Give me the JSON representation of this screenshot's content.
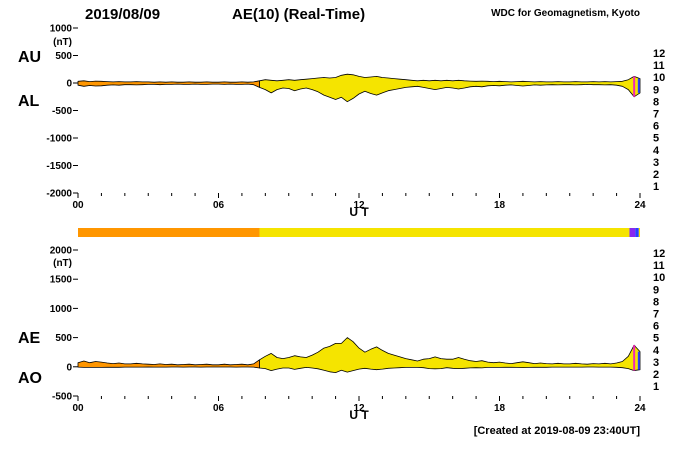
{
  "header": {
    "date": "2019/08/09",
    "title": "AE(10) (Real-Time)",
    "source": "WDC for Geomagnetism, Kyoto"
  },
  "footer": {
    "created": "[Created at 2019-08-09 23:40UT]"
  },
  "legend": {
    "station_counts": [
      "12",
      "11",
      "10",
      "9",
      "8",
      "7",
      "6",
      "5",
      "4",
      "3",
      "2",
      "1"
    ],
    "colors": [
      "#e60000",
      "#f000c8",
      "#ff9600",
      "#f0dc00",
      "#00c8c8",
      "#3264c8",
      "#00c8f0",
      "#c800f0",
      "#2832e6",
      "#000000",
      "#787878",
      "#bebebe"
    ]
  },
  "station_bar": {
    "segments": [
      {
        "start": 0,
        "end": 7.75,
        "color": "#ff9600"
      },
      {
        "start": 7.75,
        "end": 23.55,
        "color": "#f5e400"
      },
      {
        "start": 23.55,
        "end": 23.8,
        "color": "#8828f0"
      },
      {
        "start": 23.8,
        "end": 23.95,
        "color": "#2840ff"
      },
      {
        "start": 23.95,
        "end": 24,
        "color": "#f5e400"
      }
    ]
  },
  "chart_data": [
    {
      "type": "area",
      "name": "AU / AL auroral electrojet indices",
      "left_labels": [
        "AU",
        "AL"
      ],
      "ylabel_unit": "(nT)",
      "ylim": [
        -2000,
        1000
      ],
      "yticks": [
        1000,
        500,
        0,
        -500,
        -1000,
        -1500,
        -2000
      ],
      "xticks": [
        "00",
        "06",
        "12",
        "18",
        "24"
      ],
      "xlabel": "U T",
      "x_hours_step": 0.25,
      "fill_segments": [
        {
          "start": 0,
          "end": 7.75,
          "color": "#ff9600"
        },
        {
          "start": 7.75,
          "end": 24,
          "color": "#f5e400"
        }
      ],
      "end_markers": [
        {
          "t": 23.75,
          "color": "#f028b4"
        },
        {
          "t": 23.95,
          "color": "#2840ff"
        }
      ],
      "series": [
        {
          "name": "AU",
          "values": [
            30,
            40,
            25,
            35,
            30,
            25,
            20,
            25,
            20,
            20,
            25,
            20,
            20,
            15,
            20,
            15,
            20,
            15,
            15,
            20,
            15,
            15,
            20,
            15,
            15,
            20,
            15,
            15,
            20,
            15,
            20,
            40,
            60,
            50,
            40,
            50,
            60,
            50,
            60,
            70,
            80,
            90,
            100,
            90,
            100,
            140,
            160,
            150,
            120,
            100,
            110,
            120,
            100,
            90,
            80,
            70,
            60,
            50,
            40,
            50,
            40,
            50,
            40,
            50,
            40,
            50,
            40,
            35,
            30,
            35,
            30,
            25,
            30,
            25,
            20,
            25,
            30,
            25,
            20,
            25,
            20,
            20,
            25,
            20,
            20,
            25,
            20,
            20,
            25,
            20,
            25,
            20,
            25,
            30,
            60,
            120,
            80
          ]
        },
        {
          "name": "AL",
          "values": [
            -40,
            -60,
            -45,
            -55,
            -50,
            -40,
            -35,
            -40,
            -30,
            -30,
            -35,
            -30,
            -25,
            -25,
            -30,
            -25,
            -25,
            -20,
            -25,
            -25,
            -20,
            -25,
            -25,
            -20,
            -20,
            -25,
            -20,
            -25,
            -25,
            -20,
            -30,
            -80,
            -120,
            -180,
            -120,
            -90,
            -100,
            -140,
            -110,
            -90,
            -120,
            -160,
            -220,
            -260,
            -300,
            -260,
            -340,
            -280,
            -200,
            -150,
            -190,
            -220,
            -180,
            -140,
            -120,
            -100,
            -80,
            -70,
            -60,
            -80,
            -100,
            -120,
            -100,
            -80,
            -90,
            -110,
            -90,
            -70,
            -60,
            -70,
            -50,
            -45,
            -50,
            -40,
            -35,
            -45,
            -55,
            -45,
            -35,
            -40,
            -35,
            -30,
            -35,
            -30,
            -30,
            -35,
            -30,
            -25,
            -30,
            -30,
            -35,
            -30,
            -40,
            -60,
            -120,
            -250,
            -180
          ]
        }
      ]
    },
    {
      "type": "area",
      "name": "AE / AO auroral electrojet indices",
      "left_labels": [
        "AE",
        "AO"
      ],
      "ylabel_unit": "(nT)",
      "ylim": [
        -500,
        2000
      ],
      "yticks": [
        2000,
        1500,
        1000,
        500,
        0,
        -500
      ],
      "xticks": [
        "00",
        "06",
        "12",
        "18",
        "24"
      ],
      "xlabel": "U T",
      "x_hours_step": 0.25,
      "fill_segments": [
        {
          "start": 0,
          "end": 7.75,
          "color": "#ff9600"
        },
        {
          "start": 7.75,
          "end": 24,
          "color": "#f5e400"
        }
      ],
      "end_markers": [
        {
          "t": 23.75,
          "color": "#f028b4"
        },
        {
          "t": 23.95,
          "color": "#2840ff"
        }
      ],
      "series": [
        {
          "name": "AE",
          "values": [
            70,
            100,
            70,
            90,
            80,
            65,
            55,
            65,
            50,
            50,
            60,
            50,
            45,
            40,
            50,
            40,
            45,
            35,
            40,
            45,
            35,
            40,
            45,
            35,
            35,
            45,
            35,
            40,
            45,
            35,
            50,
            120,
            180,
            230,
            160,
            140,
            160,
            190,
            170,
            160,
            200,
            250,
            320,
            350,
            400,
            400,
            500,
            430,
            320,
            250,
            300,
            340,
            280,
            230,
            200,
            170,
            140,
            120,
            100,
            130,
            140,
            170,
            140,
            130,
            130,
            160,
            130,
            105,
            90,
            105,
            80,
            70,
            80,
            65,
            55,
            70,
            85,
            70,
            55,
            65,
            55,
            50,
            60,
            50,
            50,
            60,
            50,
            45,
            55,
            50,
            60,
            50,
            65,
            90,
            180,
            370,
            260
          ]
        },
        {
          "name": "AO",
          "values": [
            -5,
            -10,
            -10,
            -10,
            -10,
            -8,
            -8,
            -8,
            -5,
            -5,
            -5,
            -5,
            -3,
            -5,
            -5,
            -5,
            -3,
            -3,
            -5,
            -3,
            -3,
            -5,
            -3,
            -3,
            -3,
            -3,
            -3,
            -5,
            -3,
            -3,
            -5,
            -20,
            -30,
            -65,
            -40,
            -20,
            -20,
            -45,
            -25,
            -10,
            -20,
            -35,
            -60,
            -85,
            -100,
            -60,
            -90,
            -65,
            -40,
            -25,
            -40,
            -50,
            -40,
            -25,
            -20,
            -15,
            -10,
            -10,
            -10,
            -15,
            -30,
            -35,
            -30,
            -15,
            -25,
            -30,
            -25,
            -18,
            -15,
            -18,
            -10,
            -10,
            -10,
            -8,
            -8,
            -10,
            -13,
            -10,
            -8,
            -8,
            -8,
            -5,
            -5,
            -5,
            -5,
            -5,
            -5,
            -3,
            -3,
            -5,
            -5,
            -5,
            -8,
            -15,
            -30,
            -65,
            -50
          ]
        }
      ]
    }
  ]
}
